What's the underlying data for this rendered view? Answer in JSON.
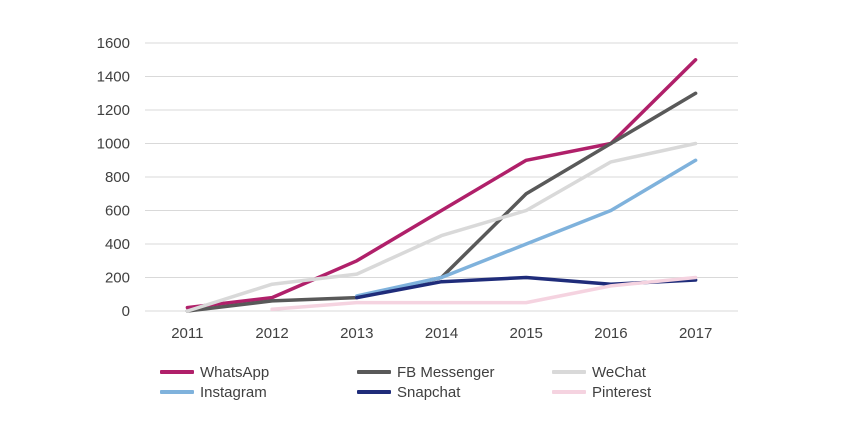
{
  "chart_data": {
    "type": "line",
    "x": [
      "2011",
      "2012",
      "2013",
      "2014",
      "2015",
      "2016",
      "2017"
    ],
    "ylim": [
      0,
      1600
    ],
    "yticks": [
      0,
      200,
      400,
      600,
      800,
      1000,
      1200,
      1400,
      1600
    ],
    "grid": true,
    "legend_position": "bottom",
    "series": [
      {
        "name": "WhatsApp",
        "color": "#b0206a",
        "values": [
          20,
          80,
          300,
          600,
          900,
          1000,
          1500
        ]
      },
      {
        "name": "FB Messenger",
        "color": "#595959",
        "values": [
          0,
          60,
          80,
          200,
          700,
          1000,
          1300
        ]
      },
      {
        "name": "WeChat",
        "color": "#d9d9d9",
        "values": [
          0,
          160,
          220,
          450,
          600,
          890,
          1000
        ]
      },
      {
        "name": "Instagram",
        "color": "#7fb2dc",
        "values": [
          null,
          null,
          90,
          200,
          400,
          600,
          900
        ]
      },
      {
        "name": "Snapchat",
        "color": "#1f2c7a",
        "values": [
          null,
          null,
          80,
          175,
          200,
          160,
          185
        ]
      },
      {
        "name": "Pinterest",
        "color": "#f5d3e0",
        "values": [
          null,
          10,
          50,
          50,
          50,
          150,
          200
        ]
      }
    ]
  }
}
